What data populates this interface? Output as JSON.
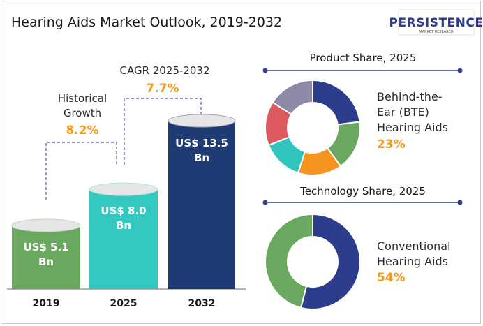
{
  "title": "Hearing Aids Market Outlook, 2019-2032",
  "logo": {
    "main": "PERSISTENCE",
    "sub": "MARKET RESEARCH"
  },
  "colors": {
    "accent": "#f39a1d",
    "dashed": "#4d57a6",
    "navy": "#1f3b73"
  },
  "chart_data": [
    {
      "type": "bar",
      "title": "",
      "categories": [
        "2019",
        "2025",
        "2032"
      ],
      "values": [
        5.1,
        8.0,
        13.5
      ],
      "value_labels": [
        [
          "US$ 5.1",
          "Bn"
        ],
        [
          "US$ 8.0",
          "Bn"
        ],
        [
          "US$ 13.5",
          "Bn"
        ]
      ],
      "colors": [
        "#6aa85f",
        "#33c9c0",
        "#1f3b73"
      ],
      "ylim": [
        0,
        14.5
      ],
      "annotations": {
        "historical": {
          "label_lines": [
            "Historical",
            "Growth"
          ],
          "value": "8.2%"
        },
        "cagr": {
          "label": "CAGR 2025-2032",
          "value": "7.7%"
        }
      }
    },
    {
      "type": "pie",
      "title": "Product Share, 2025",
      "values": [
        23,
        17,
        15,
        14,
        15,
        16
      ],
      "colors": [
        "#2e3c8c",
        "#6aa85f",
        "#f4931d",
        "#2fc5bd",
        "#dc5a5e",
        "#8c8aa6"
      ],
      "highlight": {
        "label_lines": [
          "Behind-the-",
          "Ear (BTE)",
          "Hearing Aids"
        ],
        "value": "23%"
      }
    },
    {
      "type": "pie",
      "title": "Technology Share, 2025",
      "values": [
        54,
        46
      ],
      "colors": [
        "#2e3c8c",
        "#6aa85f"
      ],
      "highlight": {
        "label_lines": [
          "Conventional",
          "Hearing Aids"
        ],
        "value": "54%"
      }
    }
  ]
}
